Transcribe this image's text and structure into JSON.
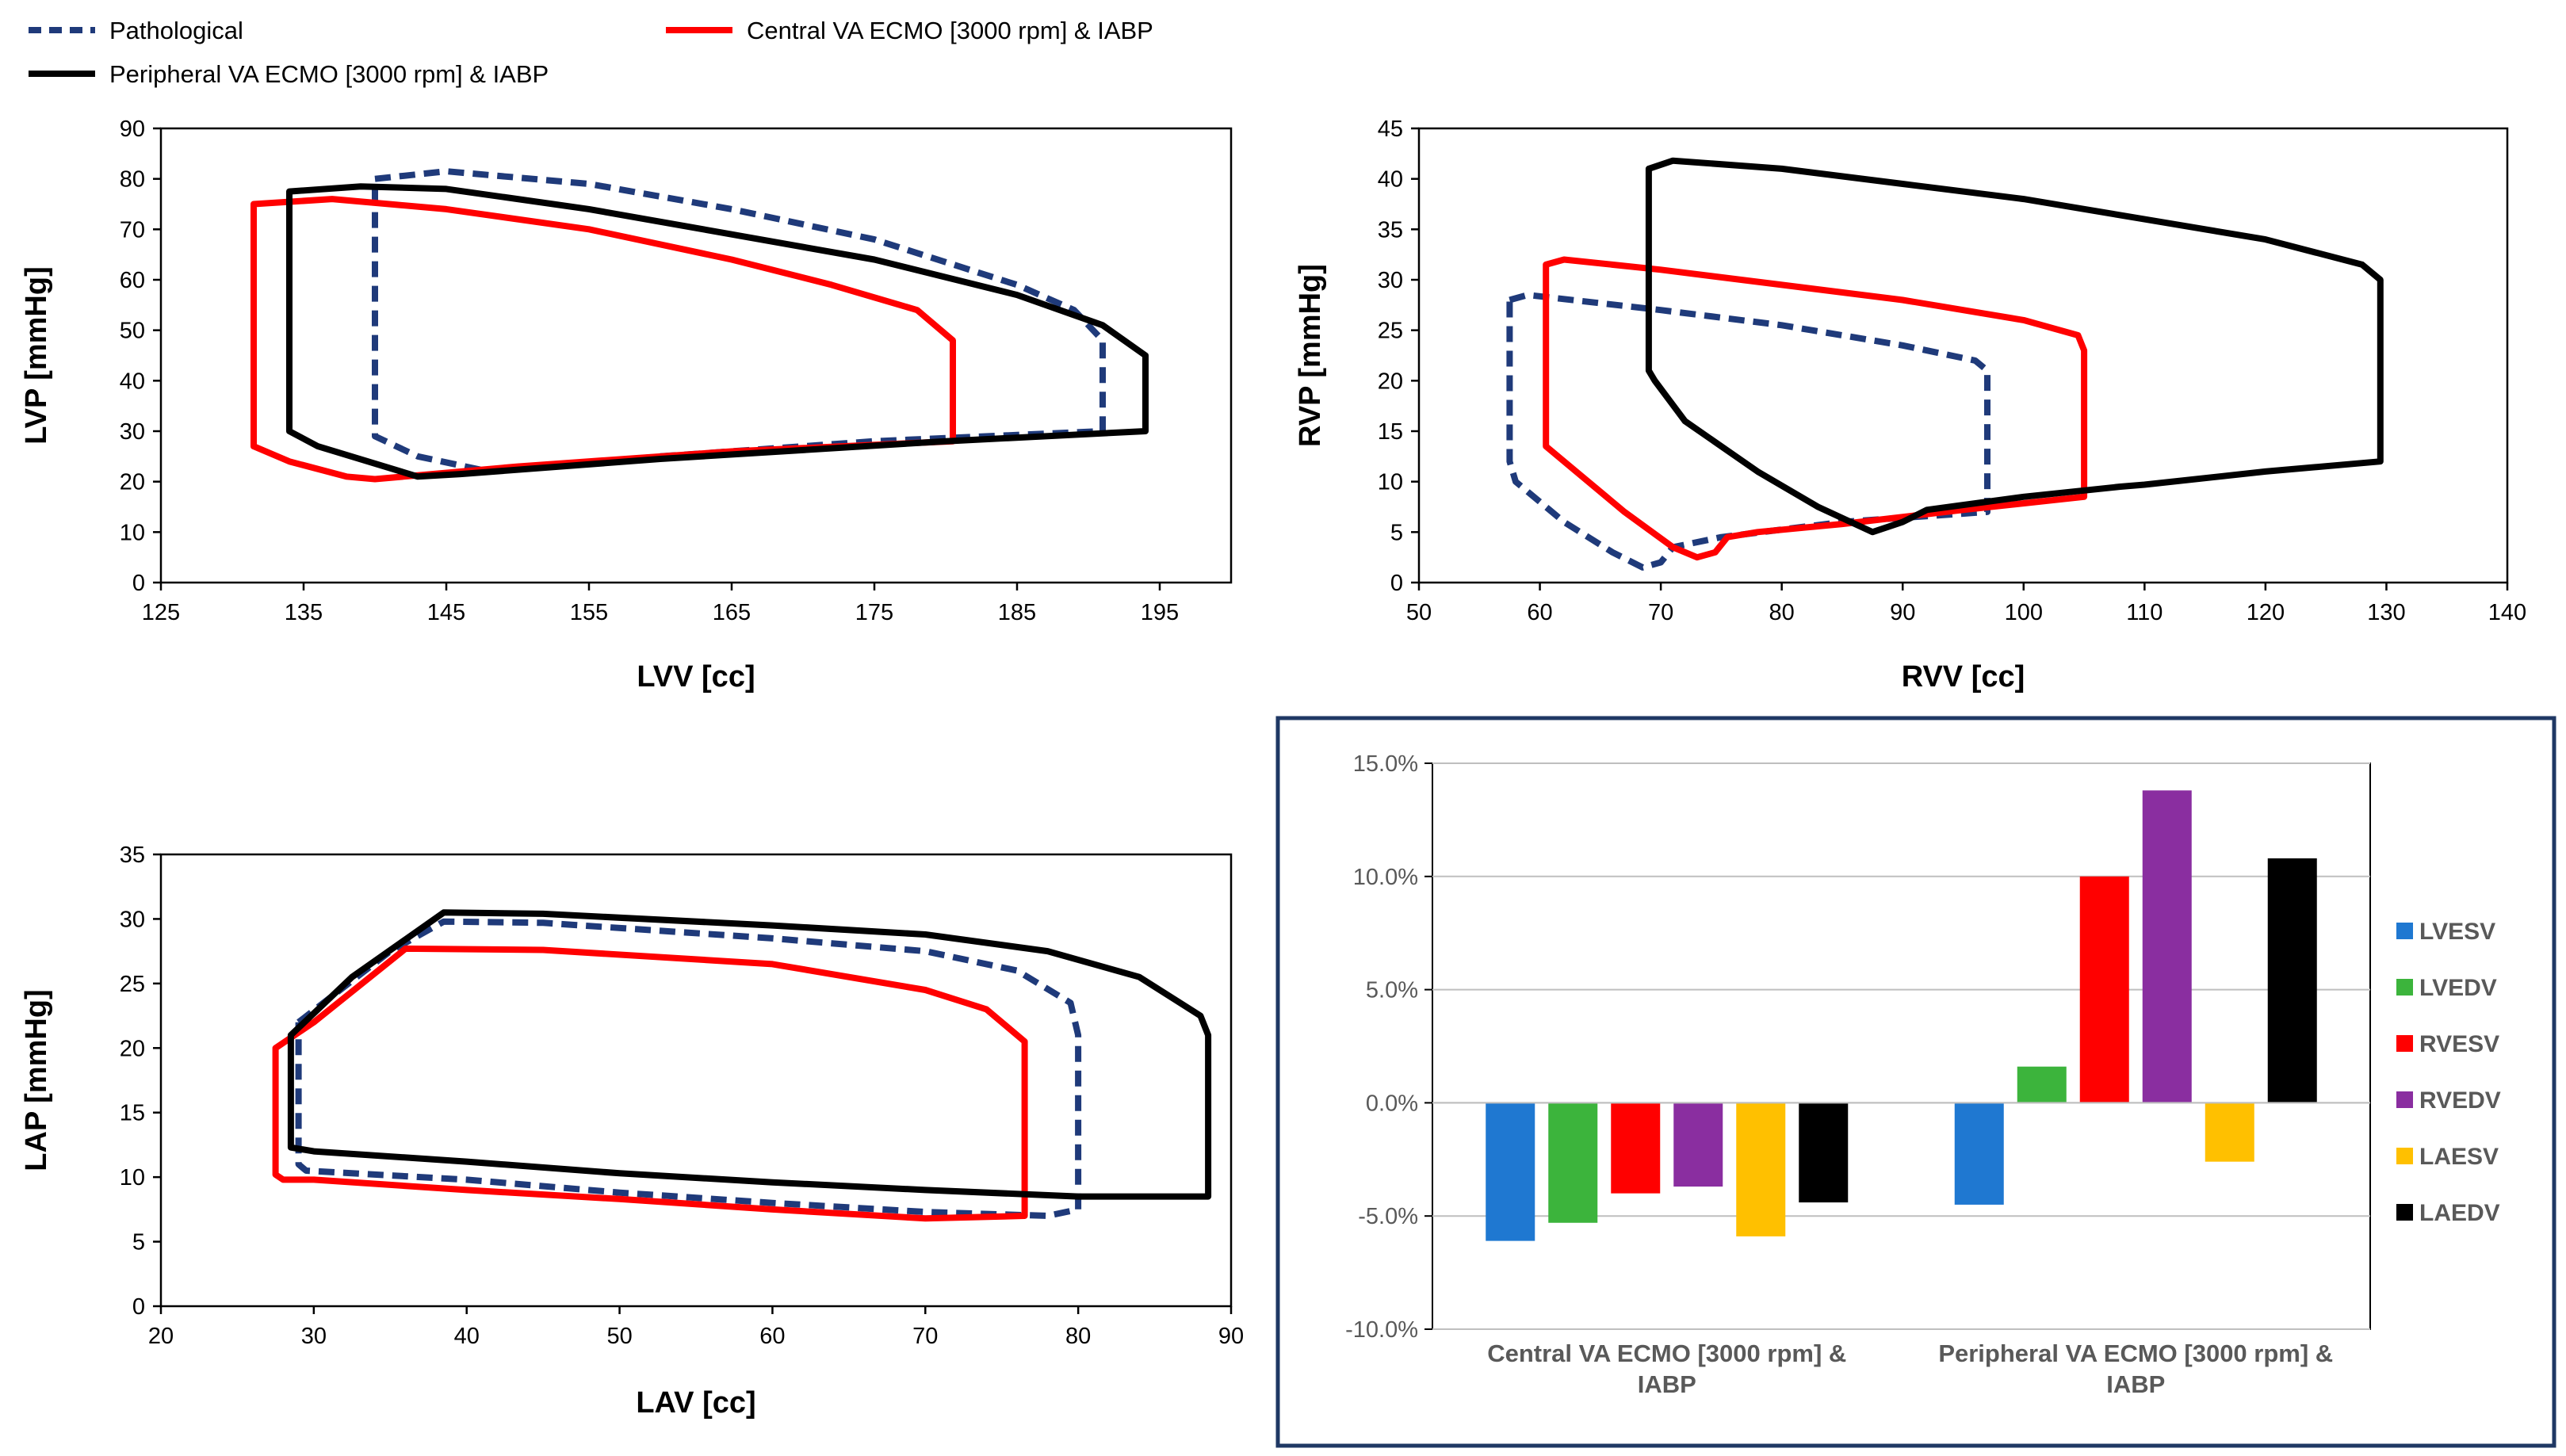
{
  "legend": {
    "items": [
      {
        "label": "Pathological",
        "color": "#1f3a7a",
        "style": "dashed"
      },
      {
        "label": "Central VA ECMO [3000 rpm] & IABP",
        "color": "#ff0000",
        "style": "solid"
      },
      {
        "label": "Peripheral VA ECMO [3000 rpm] & IABP",
        "color": "#000000",
        "style": "solid"
      }
    ]
  },
  "chart_data": [
    {
      "type": "line",
      "id": "lv_pv_loop",
      "title": "",
      "xlabel": "LVV [cc]",
      "ylabel": "LVP [mmHg]",
      "xlim": [
        125,
        200
      ],
      "ylim": [
        0,
        90
      ],
      "x_ticks": [
        125,
        135,
        145,
        155,
        165,
        175,
        185,
        195
      ],
      "y_ticks": [
        0,
        10,
        20,
        30,
        40,
        50,
        60,
        70,
        80,
        90
      ],
      "series": [
        {
          "name": "Pathological",
          "color": "#1f3a7a",
          "style": "dashed",
          "points": [
            [
              140,
              80
            ],
            [
              145,
              81.5
            ],
            [
              155,
              79
            ],
            [
              165,
              74
            ],
            [
              175,
              68
            ],
            [
              185,
              59
            ],
            [
              189,
              54
            ],
            [
              191,
              48
            ],
            [
              191,
              30
            ],
            [
              175,
              28
            ],
            [
              160,
              25
            ],
            [
              148,
              22
            ],
            [
              143,
              25
            ],
            [
              140,
              29
            ],
            [
              140,
              80
            ]
          ]
        },
        {
          "name": "Central VA ECMO [3000 rpm] & IABP",
          "color": "#ff0000",
          "style": "solid",
          "points": [
            [
              131.5,
              75
            ],
            [
              137,
              76
            ],
            [
              145,
              74
            ],
            [
              155,
              70
            ],
            [
              165,
              64
            ],
            [
              172,
              59
            ],
            [
              178,
              54
            ],
            [
              180.5,
              48
            ],
            [
              180.5,
              28
            ],
            [
              165,
              26
            ],
            [
              150,
              23
            ],
            [
              140,
              20.5
            ],
            [
              138,
              21
            ],
            [
              134,
              24
            ],
            [
              131.5,
              27
            ],
            [
              131.5,
              75
            ]
          ]
        },
        {
          "name": "Peripheral VA ECMO [3000 rpm] & IABP",
          "color": "#000000",
          "style": "solid",
          "points": [
            [
              134,
              77.5
            ],
            [
              139,
              78.5
            ],
            [
              145,
              78
            ],
            [
              155,
              74
            ],
            [
              165,
              69
            ],
            [
              175,
              64
            ],
            [
              185,
              57
            ],
            [
              191,
              51
            ],
            [
              194,
              45
            ],
            [
              194,
              30
            ],
            [
              180,
              28
            ],
            [
              160,
              24.5
            ],
            [
              146,
              21.5
            ],
            [
              143,
              21
            ],
            [
              136,
              27
            ],
            [
              134,
              30
            ],
            [
              134,
              77.5
            ]
          ]
        }
      ]
    },
    {
      "type": "line",
      "id": "rv_pv_loop",
      "title": "",
      "xlabel": "RVV [cc]",
      "ylabel": "RVP [mmHg]",
      "xlim": [
        50,
        140
      ],
      "ylim": [
        0,
        45
      ],
      "x_ticks": [
        50,
        60,
        70,
        80,
        90,
        100,
        110,
        120,
        130,
        140
      ],
      "y_ticks": [
        0,
        5,
        10,
        15,
        20,
        25,
        30,
        35,
        40,
        45
      ],
      "series": [
        {
          "name": "Pathological",
          "color": "#1f3a7a",
          "style": "dashed",
          "points": [
            [
              57.5,
              28
            ],
            [
              59,
              28.5
            ],
            [
              70,
              27
            ],
            [
              80,
              25.5
            ],
            [
              90,
              23.5
            ],
            [
              96,
              22
            ],
            [
              97,
              21
            ],
            [
              97,
              7
            ],
            [
              85,
              6
            ],
            [
              75,
              4.5
            ],
            [
              71,
              3.5
            ],
            [
              70,
              2
            ],
            [
              68.5,
              1.5
            ],
            [
              66,
              3
            ],
            [
              62,
              6
            ],
            [
              58,
              10
            ],
            [
              57.5,
              12
            ],
            [
              57.5,
              28
            ]
          ]
        },
        {
          "name": "Central VA ECMO [3000 rpm] & IABP",
          "color": "#ff0000",
          "style": "solid",
          "points": [
            [
              60.5,
              31.5
            ],
            [
              62,
              32
            ],
            [
              70,
              31
            ],
            [
              80,
              29.5
            ],
            [
              90,
              28
            ],
            [
              100,
              26
            ],
            [
              104.5,
              24.5
            ],
            [
              105,
              23
            ],
            [
              105,
              8.5
            ],
            [
              95,
              7.2
            ],
            [
              85,
              5.8
            ],
            [
              78,
              5
            ],
            [
              75.5,
              4.5
            ],
            [
              74.5,
              3
            ],
            [
              73,
              2.5
            ],
            [
              71,
              3.5
            ],
            [
              67,
              7
            ],
            [
              63,
              11
            ],
            [
              60.5,
              13.5
            ],
            [
              60.5,
              31.5
            ]
          ]
        },
        {
          "name": "Peripheral VA ECMO [3000 rpm] & IABP",
          "color": "#000000",
          "style": "solid",
          "points": [
            [
              69,
              41
            ],
            [
              71,
              41.8
            ],
            [
              80,
              41
            ],
            [
              90,
              39.5
            ],
            [
              100,
              38
            ],
            [
              110,
              36
            ],
            [
              120,
              34
            ],
            [
              128,
              31.5
            ],
            [
              129.5,
              30
            ],
            [
              129.5,
              12
            ],
            [
              120,
              11
            ],
            [
              110,
              9.7
            ],
            [
              108,
              9.5
            ],
            [
              100,
              8.5
            ],
            [
              92,
              7.2
            ],
            [
              90,
              6
            ],
            [
              87.5,
              5
            ],
            [
              83,
              7.5
            ],
            [
              78,
              11
            ],
            [
              72,
              16
            ],
            [
              69.5,
              20
            ],
            [
              69,
              21
            ],
            [
              69,
              41
            ]
          ]
        }
      ]
    },
    {
      "type": "line",
      "id": "la_pv_loop",
      "title": "",
      "xlabel": "LAV [cc]",
      "ylabel": "LAP [mmHg]",
      "xlim": [
        20,
        90
      ],
      "ylim": [
        0,
        35
      ],
      "x_ticks": [
        20,
        30,
        40,
        50,
        60,
        70,
        80,
        90
      ],
      "y_ticks": [
        0,
        5,
        10,
        15,
        20,
        25,
        30,
        35
      ],
      "series": [
        {
          "name": "Pathological",
          "color": "#1f3a7a",
          "style": "dashed",
          "points": [
            [
              29,
              22
            ],
            [
              35,
              27.5
            ],
            [
              38.5,
              29.8
            ],
            [
              45,
              29.7
            ],
            [
              60,
              28.5
            ],
            [
              70,
              27.5
            ],
            [
              76,
              26
            ],
            [
              79.5,
              23.5
            ],
            [
              80,
              21
            ],
            [
              80,
              7.5
            ],
            [
              78,
              7
            ],
            [
              70,
              7.3
            ],
            [
              60,
              8
            ],
            [
              50,
              8.8
            ],
            [
              40,
              9.8
            ],
            [
              29.5,
              10.5
            ],
            [
              29,
              11
            ],
            [
              29,
              22
            ]
          ]
        },
        {
          "name": "Central VA ECMO [3000 rpm] & IABP",
          "color": "#ff0000",
          "style": "solid",
          "points": [
            [
              27.5,
              20
            ],
            [
              30,
              22
            ],
            [
              36,
              27.7
            ],
            [
              45,
              27.6
            ],
            [
              60,
              26.5
            ],
            [
              70,
              24.5
            ],
            [
              74,
              23
            ],
            [
              76.5,
              20.5
            ],
            [
              76.5,
              7
            ],
            [
              70,
              6.8
            ],
            [
              60,
              7.5
            ],
            [
              50,
              8.3
            ],
            [
              40,
              9
            ],
            [
              30,
              9.8
            ],
            [
              28,
              9.8
            ],
            [
              27.5,
              10.2
            ],
            [
              27.5,
              20
            ]
          ]
        },
        {
          "name": "Peripheral VA ECMO [3000 rpm] & IABP",
          "color": "#000000",
          "style": "solid",
          "points": [
            [
              28.5,
              21
            ],
            [
              32.5,
              25.5
            ],
            [
              38.5,
              30.5
            ],
            [
              45,
              30.4
            ],
            [
              60,
              29.5
            ],
            [
              70,
              28.8
            ],
            [
              78,
              27.5
            ],
            [
              84,
              25.5
            ],
            [
              88,
              22.5
            ],
            [
              88.5,
              21
            ],
            [
              88.5,
              8.5
            ],
            [
              80,
              8.5
            ],
            [
              70,
              9
            ],
            [
              60,
              9.6
            ],
            [
              50,
              10.3
            ],
            [
              40,
              11.2
            ],
            [
              30,
              12
            ],
            [
              28.5,
              12.3
            ],
            [
              28.5,
              21
            ]
          ]
        }
      ]
    },
    {
      "type": "bar",
      "id": "volume_change",
      "title": "",
      "xlabel": "",
      "ylabel": "",
      "ylim": [
        -10,
        15
      ],
      "y_ticks": [
        "-10.0%",
        "-5.0%",
        "0.0%",
        "5.0%",
        "10.0%",
        "15.0%"
      ],
      "y_tick_values": [
        -10,
        -5,
        0,
        5,
        10,
        15
      ],
      "categories": [
        [
          "Central VA ECMO [3000 rpm] &",
          "IABP"
        ],
        [
          "Peripheral VA ECMO [3000 rpm] &",
          "IABP"
        ]
      ],
      "legend_position": "right",
      "series": [
        {
          "name": "LVESV",
          "color": "#1f78d1",
          "values": [
            -6.1,
            -4.5
          ]
        },
        {
          "name": "LVEDV",
          "color": "#3cb43c",
          "values": [
            -5.3,
            1.6
          ]
        },
        {
          "name": "RVESV",
          "color": "#ff0000",
          "values": [
            -4.0,
            10.0
          ]
        },
        {
          "name": "RVEDV",
          "color": "#8a2ea0",
          "values": [
            -3.7,
            13.8
          ]
        },
        {
          "name": "LAESV",
          "color": "#ffc000",
          "values": [
            -5.9,
            -2.6
          ]
        },
        {
          "name": "LAEDV",
          "color": "#000000",
          "values": [
            -4.4,
            10.8
          ]
        }
      ]
    }
  ]
}
